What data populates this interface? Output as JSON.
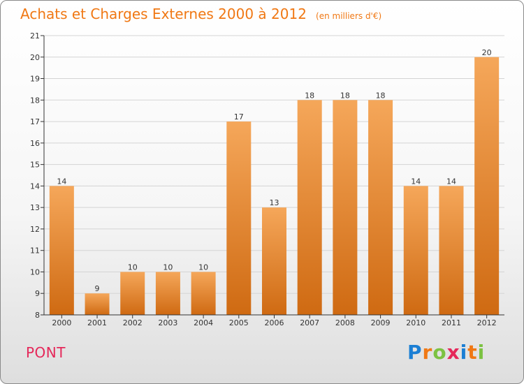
{
  "header": {
    "title": "Achats et Charges Externes 2000 à 2012",
    "unit": "(en milliers d'€)"
  },
  "footer": {
    "commune": "PONT",
    "logo_letters": [
      "P",
      "r",
      "o",
      "x",
      "i",
      "t",
      "i"
    ],
    "logo_colors": [
      "#1b7fd4",
      "#f07814",
      "#7cc242",
      "#e5285a",
      "#1b7fd4",
      "#f07814",
      "#7cc242"
    ]
  },
  "colors": {
    "bar_top": "#f5a75a",
    "bar_bottom": "#cf6a12",
    "title": "#f07814",
    "commune": "#e5285a"
  },
  "chart_data": {
    "type": "bar",
    "title": "Achats et Charges Externes 2000 à 2012",
    "subtitle": "(en milliers d'€)",
    "xlabel": "",
    "ylabel": "",
    "categories": [
      "2000",
      "2001",
      "2002",
      "2003",
      "2004",
      "2005",
      "2006",
      "2007",
      "2008",
      "2009",
      "2010",
      "2011",
      "2012"
    ],
    "values": [
      14,
      9,
      10,
      10,
      10,
      17,
      13,
      18,
      18,
      18,
      14,
      14,
      20
    ],
    "ylim": [
      8,
      21
    ],
    "yticks": [
      8,
      9,
      10,
      11,
      12,
      13,
      14,
      15,
      16,
      17,
      18,
      19,
      20,
      21
    ],
    "grid": true,
    "legend": "none"
  }
}
